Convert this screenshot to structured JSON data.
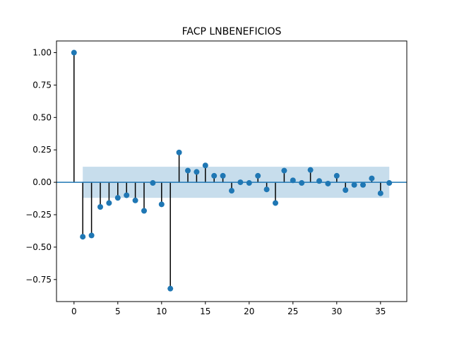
{
  "chart_data": {
    "type": "stem",
    "title": "FACP LNBENEFICIOS",
    "xlabel": "",
    "ylabel": "",
    "xlim": [
      -2,
      38
    ],
    "ylim": [
      -0.92,
      1.09
    ],
    "x_ticks": [
      0,
      5,
      10,
      15,
      20,
      25,
      30,
      35
    ],
    "x_tick_labels": [
      "0",
      "5",
      "10",
      "15",
      "20",
      "25",
      "30",
      "35"
    ],
    "y_ticks": [
      1.0,
      0.75,
      0.5,
      0.25,
      0.0,
      -0.25,
      -0.5,
      -0.75
    ],
    "y_tick_labels": [
      "1.00",
      "0.75",
      "0.50",
      "0.25",
      "0.00",
      "−0.25",
      "−0.50",
      "−0.75"
    ],
    "grid": false,
    "confidence_band": {
      "x_start": 1,
      "x_end": 36,
      "lower": -0.12,
      "upper": 0.12
    },
    "x": [
      0,
      1,
      2,
      3,
      4,
      5,
      6,
      7,
      8,
      9,
      10,
      11,
      12,
      13,
      14,
      15,
      16,
      17,
      18,
      19,
      20,
      21,
      22,
      23,
      24,
      25,
      26,
      27,
      28,
      29,
      30,
      31,
      32,
      33,
      34,
      35,
      36
    ],
    "values": [
      1.0,
      -0.42,
      -0.41,
      -0.19,
      -0.16,
      -0.12,
      -0.1,
      -0.14,
      -0.22,
      -0.005,
      -0.17,
      -0.82,
      0.23,
      0.09,
      0.08,
      0.13,
      0.05,
      0.05,
      -0.065,
      0.0,
      -0.005,
      0.05,
      -0.055,
      -0.16,
      0.09,
      0.015,
      -0.005,
      0.095,
      0.01,
      -0.01,
      0.05,
      -0.06,
      -0.02,
      -0.02,
      0.03,
      -0.085,
      -0.005
    ],
    "colors": {
      "marker": "#1f77b4",
      "stem": "#000000",
      "baseline": "#1f77b4",
      "band": "#1f77b4"
    }
  }
}
